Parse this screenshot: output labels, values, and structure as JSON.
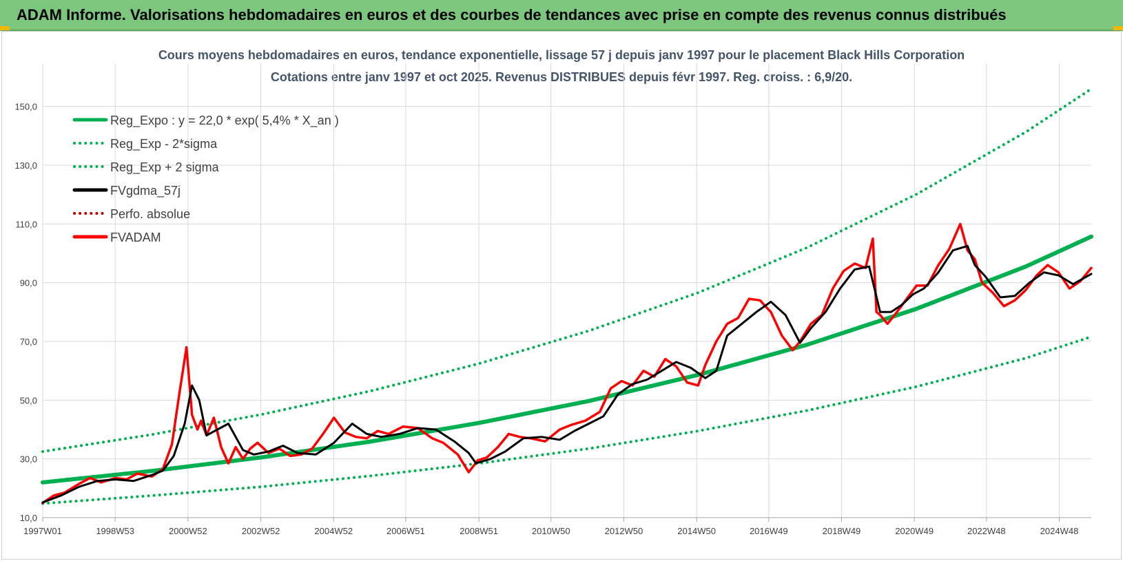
{
  "header": {
    "title": "ADAM Informe. Valorisations hebdomadaires en euros et des courbes de tendances avec prise en compte des revenus connus distribués"
  },
  "colors": {
    "banner": "#7dc67e",
    "green": "#00b050",
    "red": "#ff0000",
    "black": "#000000",
    "grid": "#d9d9d9"
  },
  "chart_data": {
    "type": "line",
    "title": "Cours moyens hebdomadaires en euros, tendance exponentielle, lissage 57 j depuis janv 1997 pour le placement Black Hills Corporation",
    "subtitle": "Cotations entre janv 1997 et oct 2025. Revenus DISTRIBUES depuis févr 1997. Reg. croiss. : 6,9/20.",
    "xlim": [
      1997.0,
      2025.8
    ],
    "ylim": [
      10,
      160
    ],
    "yticks": [
      10,
      30,
      50,
      70,
      90,
      110,
      130,
      150
    ],
    "ytick_labels": [
      "10,0",
      "30,0",
      "50,0",
      "70,0",
      "90,0",
      "110,0",
      "130,0",
      "150,0"
    ],
    "xticks": [
      1997.0,
      1998.99,
      2000.99,
      2002.99,
      2004.99,
      2006.97,
      2008.98,
      2010.96,
      2012.96,
      2014.96,
      2016.94,
      2018.94,
      2020.94,
      2022.92,
      2024.92
    ],
    "xtick_labels": [
      "1997W01",
      "1998W53",
      "2000W52",
      "2002W52",
      "2004W52",
      "2006W51",
      "2008W51",
      "2010W50",
      "2012W50",
      "2014W50",
      "2016W49",
      "2018W49",
      "2020W49",
      "2022W48",
      "2024W48"
    ],
    "grid": "vertical and horizontal",
    "legend_position": "top-left",
    "series": [
      {
        "name": "Reg_Expo : y = 22,0 * exp( 5,4% *  X_an )",
        "style": "solid",
        "color": "#00b050",
        "x": [
          1997.0,
          2000.0,
          2003.0,
          2006.0,
          2009.0,
          2012.0,
          2015.0,
          2018.0,
          2021.0,
          2024.0,
          2025.8
        ],
        "values": [
          22.0,
          25.9,
          30.5,
          35.9,
          42.3,
          49.7,
          58.6,
          68.9,
          81.1,
          95.5,
          105.7
        ]
      },
      {
        "name": "Reg_Exp - 2*sigma",
        "style": "dotted",
        "color": "#00b050",
        "x": [
          1997.0,
          2000.0,
          2003.0,
          2006.0,
          2009.0,
          2012.0,
          2015.0,
          2018.0,
          2021.0,
          2024.0,
          2025.8
        ],
        "values": [
          14.8,
          17.5,
          20.5,
          24.2,
          28.5,
          33.5,
          39.5,
          46.5,
          54.6,
          64.3,
          71.6
        ]
      },
      {
        "name": "Reg_Exp + 2 sigma",
        "style": "dotted",
        "color": "#00b050",
        "x": [
          1997.0,
          2000.0,
          2003.0,
          2006.0,
          2009.0,
          2012.0,
          2015.0,
          2018.0,
          2021.0,
          2024.0,
          2025.8
        ],
        "values": [
          32.5,
          38.3,
          45.1,
          53.1,
          62.5,
          73.6,
          86.6,
          102.0,
          120.1,
          141.3,
          156.0
        ]
      },
      {
        "name": "FVgdma_57j",
        "style": "solid",
        "color": "#000000",
        "x": [
          1997.0,
          1997.5,
          1998.0,
          1998.5,
          1999.0,
          1999.5,
          2000.0,
          2000.3,
          2000.6,
          2000.9,
          2001.1,
          2001.3,
          2001.5,
          2001.8,
          2002.1,
          2002.5,
          2002.8,
          2003.2,
          2003.6,
          2004.0,
          2004.5,
          2005.0,
          2005.5,
          2005.9,
          2006.3,
          2006.8,
          2007.3,
          2007.8,
          2008.3,
          2008.7,
          2008.9,
          2009.3,
          2009.7,
          2010.2,
          2010.7,
          2011.2,
          2011.6,
          2012.0,
          2012.4,
          2012.8,
          2013.2,
          2013.6,
          2014.0,
          2014.4,
          2014.8,
          2015.2,
          2015.5,
          2015.8,
          2016.2,
          2016.6,
          2017.0,
          2017.4,
          2017.8,
          2018.1,
          2018.5,
          2018.9,
          2019.3,
          2019.7,
          2020.0,
          2020.3,
          2020.6,
          2020.9,
          2021.2,
          2021.6,
          2022.0,
          2022.4,
          2022.6,
          2022.9,
          2023.3,
          2023.7,
          2024.1,
          2024.5,
          2024.9,
          2025.3,
          2025.8
        ],
        "values": [
          15.2,
          17.5,
          20.5,
          22.5,
          23.0,
          22.5,
          24.5,
          26.0,
          31.0,
          42.0,
          55.0,
          50.0,
          38.0,
          40.0,
          42.0,
          33.0,
          31.5,
          32.5,
          34.5,
          32.0,
          31.5,
          35.5,
          42.0,
          38.5,
          37.5,
          38.5,
          40.5,
          40.0,
          36.0,
          32.0,
          28.5,
          30.0,
          32.5,
          37.0,
          37.5,
          36.5,
          39.5,
          42.0,
          44.5,
          52.0,
          55.5,
          57.0,
          60.0,
          63.0,
          61.0,
          57.5,
          60.0,
          72.0,
          76.0,
          80.0,
          83.5,
          79.0,
          69.5,
          74.5,
          80.0,
          88.0,
          94.5,
          95.5,
          80.0,
          80.0,
          82.5,
          86.0,
          88.0,
          93.5,
          101.0,
          102.5,
          96.0,
          92.0,
          85.0,
          85.5,
          90.0,
          93.5,
          92.5,
          89.5,
          93.0
        ]
      },
      {
        "name": "Perfo. absolue",
        "style": "dotted",
        "color": "#c00000",
        "x": [],
        "values": []
      },
      {
        "name": "FVADAM",
        "style": "solid",
        "color": "#ff0000",
        "x": [
          1997.0,
          1997.3,
          1997.6,
          1998.0,
          1998.3,
          1998.6,
          1999.0,
          1999.3,
          1999.6,
          2000.0,
          2000.3,
          2000.55,
          2000.75,
          2000.95,
          2001.1,
          2001.25,
          2001.35,
          2001.5,
          2001.7,
          2001.9,
          2002.1,
          2002.3,
          2002.5,
          2002.7,
          2002.9,
          2003.2,
          2003.5,
          2003.8,
          2004.1,
          2004.4,
          2004.7,
          2005.0,
          2005.3,
          2005.6,
          2005.9,
          2006.2,
          2006.5,
          2006.9,
          2007.3,
          2007.7,
          2008.0,
          2008.4,
          2008.7,
          2008.95,
          2009.2,
          2009.5,
          2009.8,
          2010.1,
          2010.4,
          2010.8,
          2011.2,
          2011.5,
          2011.9,
          2012.3,
          2012.6,
          2012.9,
          2013.2,
          2013.5,
          2013.8,
          2014.1,
          2014.4,
          2014.7,
          2015.0,
          2015.2,
          2015.5,
          2015.8,
          2016.1,
          2016.4,
          2016.7,
          2017.0,
          2017.3,
          2017.6,
          2017.8,
          2018.1,
          2018.4,
          2018.7,
          2019.0,
          2019.3,
          2019.6,
          2019.8,
          2019.9,
          2020.0,
          2020.2,
          2020.4,
          2020.7,
          2021.0,
          2021.3,
          2021.6,
          2021.9,
          2022.2,
          2022.4,
          2022.6,
          2022.8,
          2023.1,
          2023.4,
          2023.7,
          2024.0,
          2024.3,
          2024.6,
          2024.9,
          2025.2,
          2025.5,
          2025.8
        ],
        "values": [
          15.0,
          17.5,
          18.5,
          21.5,
          23.5,
          22.0,
          23.5,
          23.0,
          25.0,
          24.0,
          26.5,
          35.0,
          52.0,
          68.0,
          45.0,
          40.0,
          43.0,
          38.0,
          44.0,
          34.0,
          28.5,
          34.0,
          30.0,
          33.5,
          35.5,
          32.0,
          33.5,
          31.0,
          31.5,
          33.5,
          38.5,
          44.0,
          39.0,
          37.5,
          37.0,
          39.5,
          38.5,
          41.0,
          40.5,
          37.0,
          35.5,
          31.5,
          25.5,
          29.5,
          30.5,
          34.0,
          38.5,
          37.5,
          37.0,
          36.0,
          40.0,
          41.5,
          43.0,
          46.0,
          54.0,
          56.5,
          55.0,
          60.0,
          58.0,
          64.0,
          61.5,
          56.0,
          55.0,
          62.0,
          70.0,
          76.0,
          78.0,
          84.5,
          84.0,
          80.0,
          72.0,
          67.0,
          70.0,
          76.0,
          79.0,
          88.0,
          94.0,
          96.5,
          95.0,
          105.0,
          80.0,
          79.0,
          76.0,
          79.0,
          84.0,
          89.0,
          89.0,
          96.0,
          101.5,
          110.0,
          101.0,
          98.0,
          90.0,
          86.5,
          82.0,
          84.0,
          87.5,
          92.5,
          96.0,
          93.5,
          88.0,
          90.5,
          95.0
        ]
      }
    ]
  }
}
